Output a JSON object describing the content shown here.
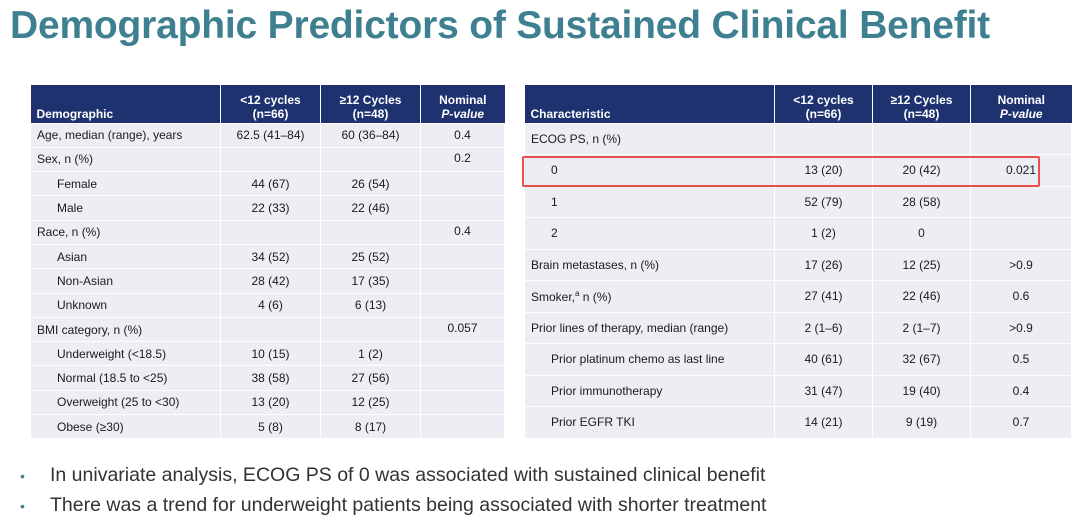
{
  "title": "Demographic Predictors of Sustained Clinical Benefit",
  "left_table": {
    "headers": {
      "col1": "Demographic",
      "col2_line1": "<12 cycles",
      "col2_line2": "(n=66)",
      "col3_line1": "≥12 Cycles",
      "col3_line2": "(n=48)",
      "col4_line1": "Nominal",
      "col4_line2": "P-value"
    },
    "rows": [
      {
        "label": "Age, median (range), years",
        "a": "62.5 (41–84)",
        "b": "60 (36–84)",
        "p": "0.4"
      },
      {
        "label": "Sex, n (%)",
        "a": "",
        "b": "",
        "p": "0.2"
      },
      {
        "label": "Female",
        "a": "44 (67)",
        "b": "26 (54)",
        "p": ""
      },
      {
        "label": "Male",
        "a": "22 (33)",
        "b": "22 (46)",
        "p": ""
      },
      {
        "label": "Race, n (%)",
        "a": "",
        "b": "",
        "p": "0.4"
      },
      {
        "label": "Asian",
        "a": "34 (52)",
        "b": "25 (52)",
        "p": ""
      },
      {
        "label": "Non-Asian",
        "a": "28 (42)",
        "b": "17 (35)",
        "p": ""
      },
      {
        "label": "Unknown",
        "a": "4 (6)",
        "b": "6 (13)",
        "p": ""
      },
      {
        "label": "BMI category, n (%)",
        "a": "",
        "b": "",
        "p": "0.057"
      },
      {
        "label": "Underweight (<18.5)",
        "a": "10 (15)",
        "b": "1 (2)",
        "p": ""
      },
      {
        "label": "Normal (18.5 to <25)",
        "a": "38 (58)",
        "b": "27 (56)",
        "p": ""
      },
      {
        "label": "Overweight (25 to <30)",
        "a": "13 (20)",
        "b": "12 (25)",
        "p": ""
      },
      {
        "label": "Obese (≥30)",
        "a": "5 (8)",
        "b": "8 (17)",
        "p": ""
      }
    ]
  },
  "right_table": {
    "headers": {
      "col1": "Characteristic",
      "col2_line1": "<12 cycles",
      "col2_line2": "(n=66)",
      "col3_line1": "≥12 Cycles",
      "col3_line2": "(n=48)",
      "col4_line1": "Nominal",
      "col4_line2": "P-value"
    },
    "rows": [
      {
        "label": "ECOG PS, n (%)",
        "a": "",
        "b": "",
        "p": ""
      },
      {
        "label": "0",
        "a": "13 (20)",
        "b": "20 (42)",
        "p": "0.021"
      },
      {
        "label": "1",
        "a": "52 (79)",
        "b": "28 (58)",
        "p": ""
      },
      {
        "label": "2",
        "a": "1 (2)",
        "b": "0",
        "p": ""
      },
      {
        "label": "Brain metastases, n (%)",
        "a": "17 (26)",
        "b": "12 (25)",
        "p": ">0.9"
      },
      {
        "label_pre": "Smoker,",
        "label_sup": "a",
        "label_post": " n (%)",
        "a": "27 (41)",
        "b": "22 (46)",
        "p": "0.6"
      },
      {
        "label": "Prior lines of therapy, median (range)",
        "a": "2 (1–6)",
        "b": "2 (1–7)",
        "p": ">0.9"
      },
      {
        "label": "Prior platinum chemo as last line",
        "a": "40 (61)",
        "b": "32 (67)",
        "p": "0.5"
      },
      {
        "label": "Prior immunotherapy",
        "a": "31 (47)",
        "b": "19 (40)",
        "p": "0.4"
      },
      {
        "label": "Prior EGFR TKI",
        "a": "14 (21)",
        "b": "9 (19)",
        "p": "0.7"
      }
    ]
  },
  "bullets": [
    "In univariate analysis, ECOG PS of 0 was associated with sustained clinical benefit",
    "There was a trend for underweight patients being associated with shorter treatment"
  ],
  "colors": {
    "title": "#3f8090",
    "header_bg": "#1e3270",
    "row_bg": "#eceef3",
    "highlight": "#e8504f"
  }
}
